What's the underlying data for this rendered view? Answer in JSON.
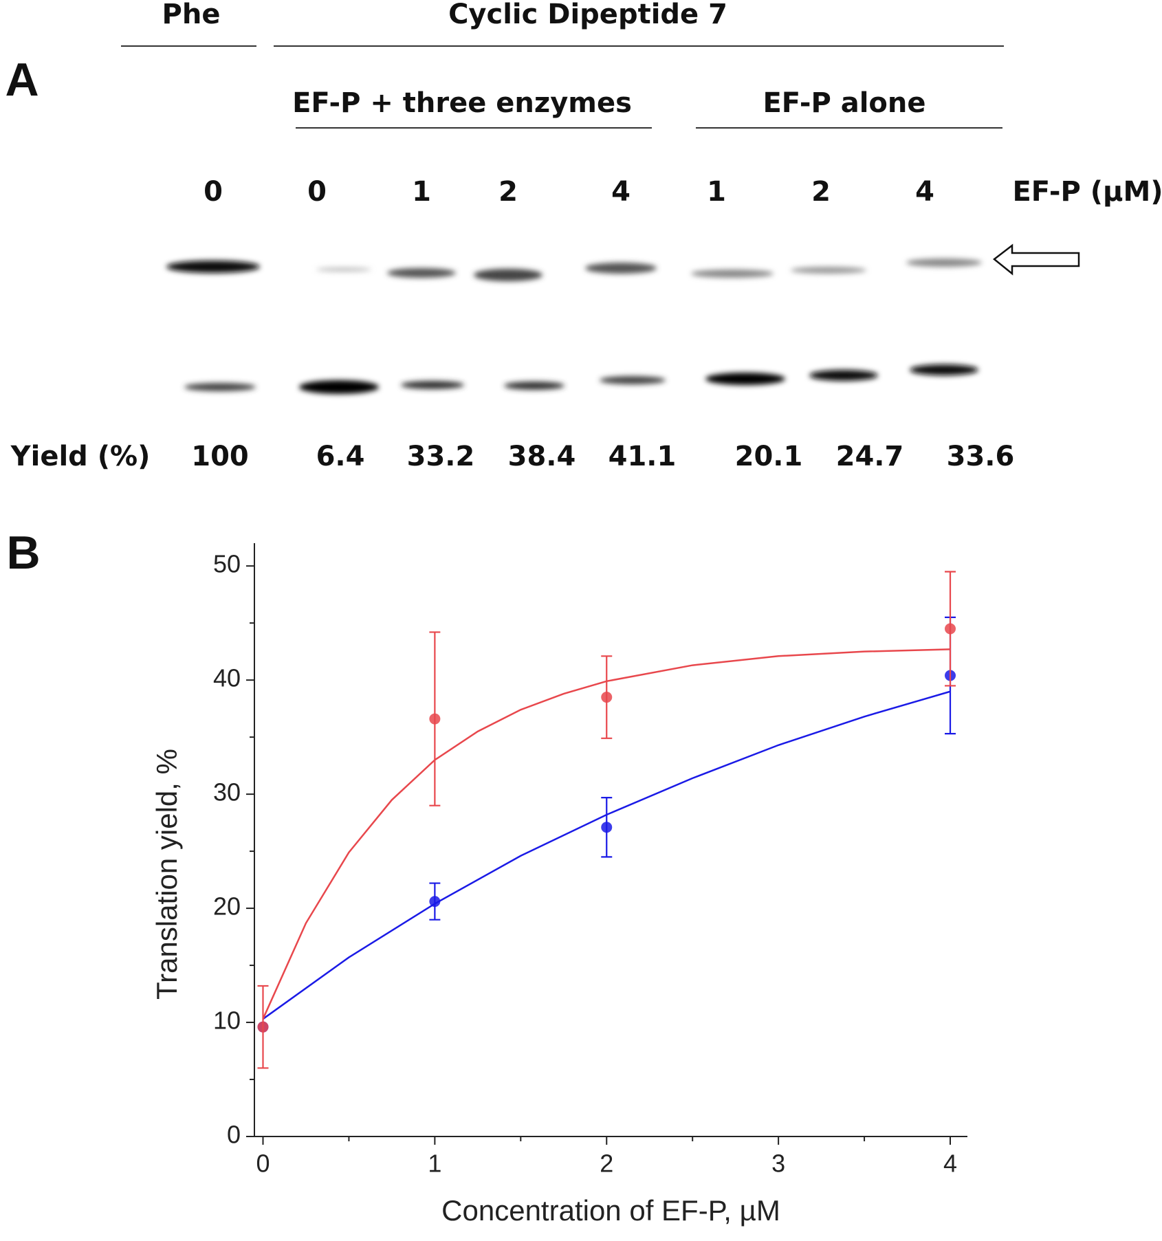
{
  "panel_a": {
    "label": "A",
    "group_top_left": "Phe",
    "group_top_right": "Cyclic Dipeptide 7",
    "subgroup_left": "EF-P + three enzymes",
    "subgroup_right": "EF-P alone",
    "lanes": [
      0,
      0,
      1,
      2,
      4,
      1,
      2,
      4
    ],
    "lane_unit": "EF-P (µM)",
    "yield_label": "Yield (%)",
    "yields": [
      100,
      6.4,
      33.2,
      38.4,
      41.1,
      20.1,
      24.7,
      33.6
    ]
  },
  "chart_data": {
    "type": "scatter",
    "panel_label": "B",
    "xlabel": "Concentration of EF-P, µM",
    "ylabel": "Translation yield, %",
    "xlim": [
      -0.05,
      4.1
    ],
    "ylim": [
      0,
      52
    ],
    "xticks": [
      0,
      1,
      2,
      3,
      4
    ],
    "xminorticks": [
      0.5,
      1.5,
      2.5,
      3.5
    ],
    "yticks": [
      0,
      10,
      20,
      30,
      40,
      50
    ],
    "yminorticks": [
      5,
      15,
      25,
      35,
      45
    ],
    "series": [
      {
        "color": "#1a1ae6",
        "x": [
          0,
          1,
          2,
          4
        ],
        "values": [
          9.6,
          20.6,
          27.1,
          40.4
        ],
        "errors": [
          null,
          1.6,
          2.6,
          5.1
        ],
        "fit_x": [
          0,
          0.5,
          1,
          1.5,
          2,
          2.5,
          3,
          3.5,
          4
        ],
        "fit_values": [
          10.3,
          15.7,
          20.4,
          24.6,
          28.2,
          31.4,
          34.3,
          36.8,
          39.0
        ]
      },
      {
        "color": "#e8474c",
        "x": [
          0,
          1,
          2,
          4
        ],
        "values": [
          9.6,
          36.6,
          38.5,
          44.5
        ],
        "errors": [
          3.6,
          7.6,
          3.6,
          5.0
        ],
        "fit_x": [
          0,
          0.25,
          0.5,
          0.75,
          1,
          1.25,
          1.5,
          1.75,
          2,
          2.5,
          3,
          3.5,
          4
        ],
        "fit_values": [
          10.3,
          18.7,
          24.9,
          29.5,
          33.0,
          35.5,
          37.4,
          38.8,
          39.9,
          41.3,
          42.1,
          42.5,
          42.7
        ]
      }
    ]
  }
}
